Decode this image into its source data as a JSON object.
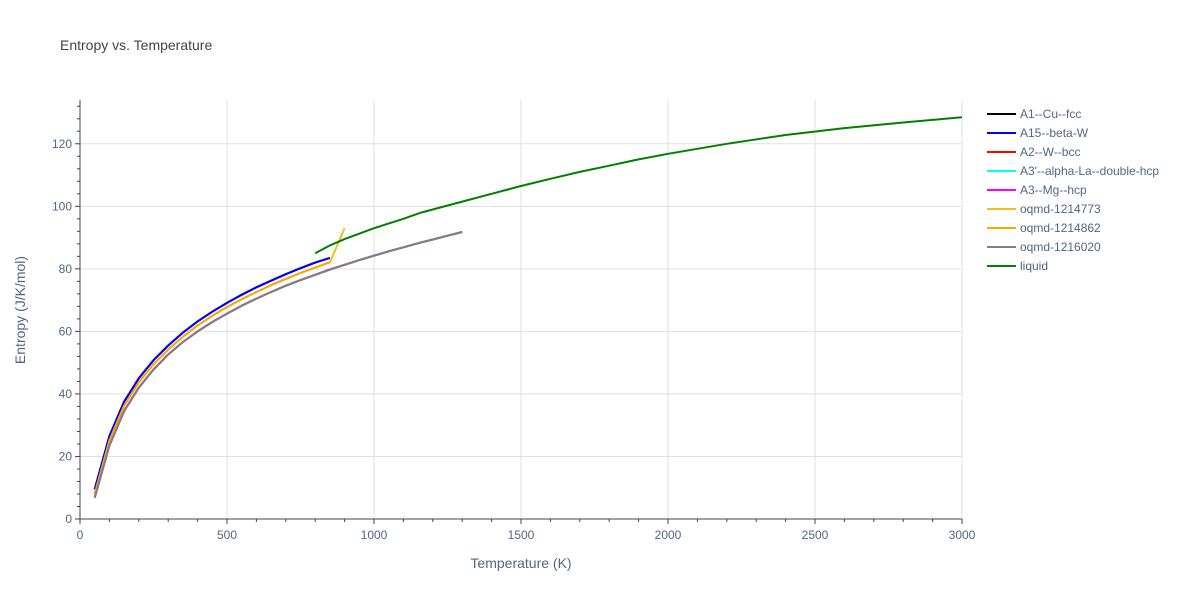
{
  "chart_data": {
    "type": "line",
    "title": "Entropy vs. Temperature",
    "xlabel": "Temperature (K)",
    "ylabel": "Entropy (J/K/mol)",
    "xlim": [
      0,
      3000
    ],
    "ylim": [
      0,
      134
    ],
    "xticks": [
      0,
      500,
      1000,
      1500,
      2000,
      2500,
      3000
    ],
    "yticks": [
      0,
      20,
      40,
      60,
      80,
      100,
      120
    ],
    "grid": true,
    "legend_position": "right",
    "series": [
      {
        "name": "A1--Cu--fcc",
        "color": "#000000",
        "x": [
          50,
          100,
          150,
          200,
          250,
          300,
          350,
          400,
          450,
          500,
          550,
          600,
          650,
          700,
          750,
          800,
          850
        ],
        "y": [
          9.5,
          26.5,
          37.5,
          45,
          50.8,
          55.5,
          59.6,
          63.2,
          66.3,
          69.1,
          71.7,
          74.1,
          76.2,
          78.3,
          80.2,
          82.0,
          83.5
        ]
      },
      {
        "name": "A15--beta-W",
        "color": "#0000ff",
        "x": [
          50,
          100,
          150,
          200,
          250,
          300,
          350,
          400,
          450,
          500,
          550,
          600,
          650,
          700,
          750,
          800,
          850
        ],
        "y": [
          9.5,
          26.5,
          37.5,
          45,
          50.8,
          55.5,
          59.6,
          63.2,
          66.3,
          69.1,
          71.7,
          74.1,
          76.2,
          78.3,
          80.2,
          82.0,
          83.5
        ]
      },
      {
        "name": "A2--W--bcc",
        "color": "#ff0000",
        "x": [
          50,
          100,
          150,
          200,
          250,
          300,
          350,
          400,
          450,
          500,
          550,
          600,
          650,
          700,
          750,
          800,
          850,
          900,
          950,
          1000,
          1050,
          1100,
          1150,
          1200,
          1250,
          1300
        ],
        "y": [
          6.8,
          23.5,
          34.5,
          42,
          47.8,
          52.6,
          56.6,
          60.0,
          63.0,
          65.7,
          68.2,
          70.5,
          72.6,
          74.6,
          76.4,
          78.1,
          79.8,
          81.3,
          82.8,
          84.2,
          85.6,
          86.9,
          88.2,
          89.4,
          90.6,
          91.8
        ]
      },
      {
        "name": "A3'--alpha-La--double-hcp",
        "color": "#00ffff",
        "x": [
          50,
          100,
          150,
          200,
          250,
          300,
          350,
          400,
          450,
          500,
          550,
          600,
          650,
          700,
          750,
          800,
          850,
          900,
          950,
          1000,
          1050,
          1100,
          1150,
          1200,
          1250,
          1300
        ],
        "y": [
          6.8,
          23.5,
          34.5,
          42,
          47.8,
          52.6,
          56.6,
          60.0,
          63.0,
          65.7,
          68.2,
          70.5,
          72.6,
          74.6,
          76.4,
          78.1,
          79.8,
          81.3,
          82.8,
          84.2,
          85.6,
          86.9,
          88.2,
          89.4,
          90.6,
          91.8
        ]
      },
      {
        "name": "A3--Mg--hcp",
        "color": "#ff00ff",
        "x": [
          50,
          100,
          150,
          200,
          250,
          300,
          350,
          400,
          450,
          500,
          550,
          600,
          650,
          700,
          750,
          800,
          850,
          900,
          950,
          1000,
          1050,
          1100,
          1150,
          1200,
          1250,
          1300
        ],
        "y": [
          6.8,
          23.5,
          34.5,
          42,
          47.8,
          52.6,
          56.6,
          60.0,
          63.0,
          65.7,
          68.2,
          70.5,
          72.6,
          74.6,
          76.4,
          78.1,
          79.8,
          81.3,
          82.8,
          84.2,
          85.6,
          86.9,
          88.2,
          89.4,
          90.6,
          91.8
        ]
      },
      {
        "name": "oqmd-1214773",
        "color": "#f0c020",
        "x": [
          50,
          100,
          150,
          200,
          250,
          300,
          350,
          400,
          450,
          500,
          550,
          600,
          650,
          700,
          750,
          800,
          850,
          900
        ],
        "y": [
          8,
          25,
          36.2,
          43.7,
          49.5,
          54.2,
          58.3,
          61.9,
          65.0,
          67.8,
          70.3,
          72.6,
          74.8,
          76.8,
          78.7,
          80.4,
          82.1,
          93.0
        ]
      },
      {
        "name": "oqmd-1214862",
        "color": "#ffa500",
        "x": [
          50,
          100,
          150,
          200,
          250,
          300,
          350,
          400,
          450,
          500,
          550,
          600,
          650,
          700,
          750,
          800,
          850
        ],
        "y": [
          8,
          25,
          36.2,
          43.7,
          49.5,
          54.2,
          58.3,
          61.9,
          65.0,
          67.8,
          70.3,
          72.6,
          74.8,
          76.8,
          78.7,
          80.4,
          82.1
        ]
      },
      {
        "name": "oqmd-1216020",
        "color": "#808080",
        "x": [
          50,
          100,
          150,
          200,
          250,
          300,
          350,
          400,
          450,
          500,
          550,
          600,
          650,
          700,
          750,
          800,
          850,
          900,
          950,
          1000,
          1050,
          1100,
          1150,
          1200,
          1250,
          1300
        ],
        "y": [
          6.8,
          23.5,
          34.5,
          42,
          47.8,
          52.6,
          56.6,
          60.0,
          63.0,
          65.7,
          68.2,
          70.5,
          72.6,
          74.6,
          76.4,
          78.1,
          79.8,
          81.3,
          82.8,
          84.2,
          85.6,
          86.9,
          88.2,
          89.4,
          90.6,
          91.8
        ]
      },
      {
        "name": "liquid",
        "color": "#008000",
        "x": [
          800,
          850,
          900,
          1000,
          1100,
          1160,
          1300,
          1400,
          1500,
          1600,
          1700,
          1800,
          1900,
          2000,
          2200,
          2400,
          2600,
          2800,
          3000
        ],
        "y": [
          85.0,
          87.5,
          89.5,
          93.0,
          96.0,
          98.0,
          101.5,
          104.0,
          106.5,
          108.8,
          111.0,
          113.0,
          115.0,
          116.8,
          120.0,
          122.8,
          125.0,
          126.8,
          128.5
        ]
      }
    ]
  }
}
